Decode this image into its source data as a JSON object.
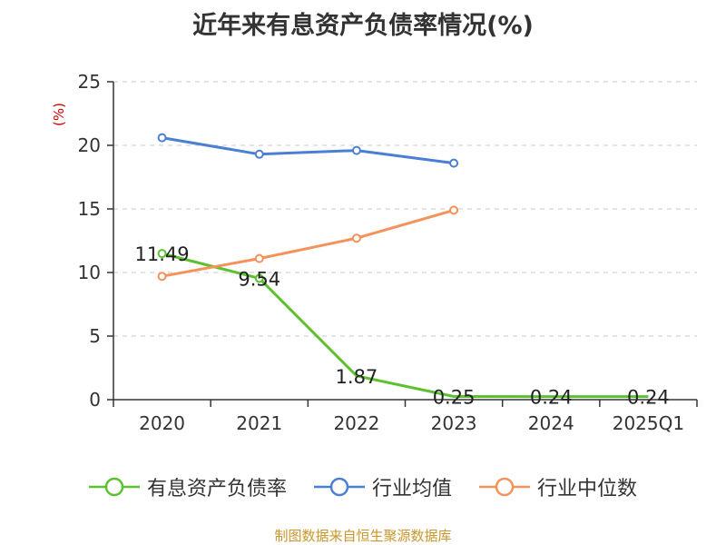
{
  "chart_data": {
    "type": "line",
    "title": "近年来有息资产负债率情况(%)",
    "ylabel": "(%)",
    "xlabel": "",
    "categories": [
      "2020",
      "2021",
      "2022",
      "2023",
      "2024",
      "2025Q1"
    ],
    "ylim": [
      0,
      25
    ],
    "yticks": [
      0,
      5,
      10,
      15,
      20,
      25
    ],
    "grid": true,
    "legend_position": "bottom",
    "series": [
      {
        "name": "有息资产负债率",
        "color": "#5cc12e",
        "values": [
          11.49,
          9.54,
          1.87,
          0.25,
          0.24,
          0.24
        ],
        "data_labels": [
          "11.49",
          "9.54",
          "1.87",
          "0.25",
          "0.24",
          "0.24"
        ],
        "markers": [
          true,
          true,
          false,
          false,
          false,
          false
        ]
      },
      {
        "name": "行业均值",
        "color": "#4a7fd4",
        "values": [
          20.6,
          19.3,
          19.6,
          18.6,
          null,
          null
        ],
        "markers": [
          true,
          true,
          true,
          true,
          false,
          false
        ]
      },
      {
        "name": "行业中位数",
        "color": "#f4925a",
        "values": [
          9.7,
          11.1,
          12.7,
          14.9,
          null,
          null
        ],
        "markers": [
          true,
          true,
          true,
          true,
          false,
          false
        ]
      }
    ]
  },
  "source_note": "制图数据来自恒生聚源数据库"
}
